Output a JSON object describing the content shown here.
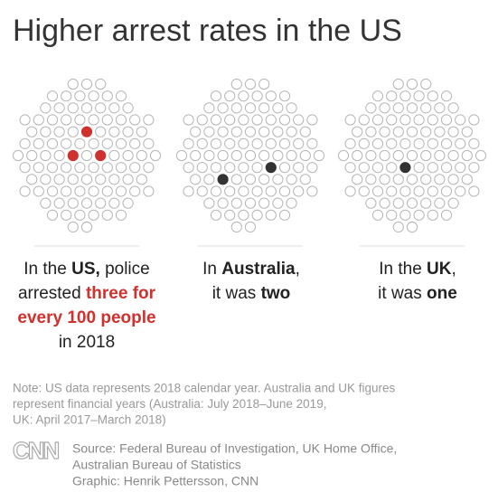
{
  "title": "Higher arrest rates in the US",
  "dots_per_panel": 100,
  "panels": [
    {
      "highlighted": 3,
      "color": "#d0312d",
      "lines": [
        [
          {
            "text": "In the "
          },
          {
            "text": "US,",
            "bold": true
          },
          {
            "text": " police"
          }
        ],
        [
          {
            "text": "arrested "
          },
          {
            "text": "three for",
            "bold": true,
            "accent": true
          }
        ],
        [
          {
            "text": "every 100 people",
            "bold": true,
            "accent": true
          }
        ],
        [
          {
            "text": "in 2018"
          }
        ]
      ]
    },
    {
      "highlighted": 2,
      "color": "#333333",
      "lines": [
        [
          {
            "text": "In "
          },
          {
            "text": "Australia",
            "bold": true
          },
          {
            "text": ","
          }
        ],
        [
          {
            "text": "it was "
          },
          {
            "text": "two",
            "bold": true
          }
        ]
      ]
    },
    {
      "highlighted": 1,
      "color": "#333333",
      "lines": [
        [
          {
            "text": "In the "
          },
          {
            "text": "UK",
            "bold": true
          },
          {
            "text": ","
          }
        ],
        [
          {
            "text": "it was "
          },
          {
            "text": "one",
            "bold": true
          }
        ]
      ]
    }
  ],
  "note": [
    "Note: US data represents 2018 calendar year. Australia and UK figures",
    "represent financial years (Australia: July 2018–June 2019,",
    "UK: April 2017–March 2018)"
  ],
  "logo": "CNN",
  "source": [
    "Source: Federal Bureau of Investigation, UK Home Office,",
    "Australian Bureau of Statistics",
    "Graphic: Henrik Pettersson, CNN"
  ]
}
